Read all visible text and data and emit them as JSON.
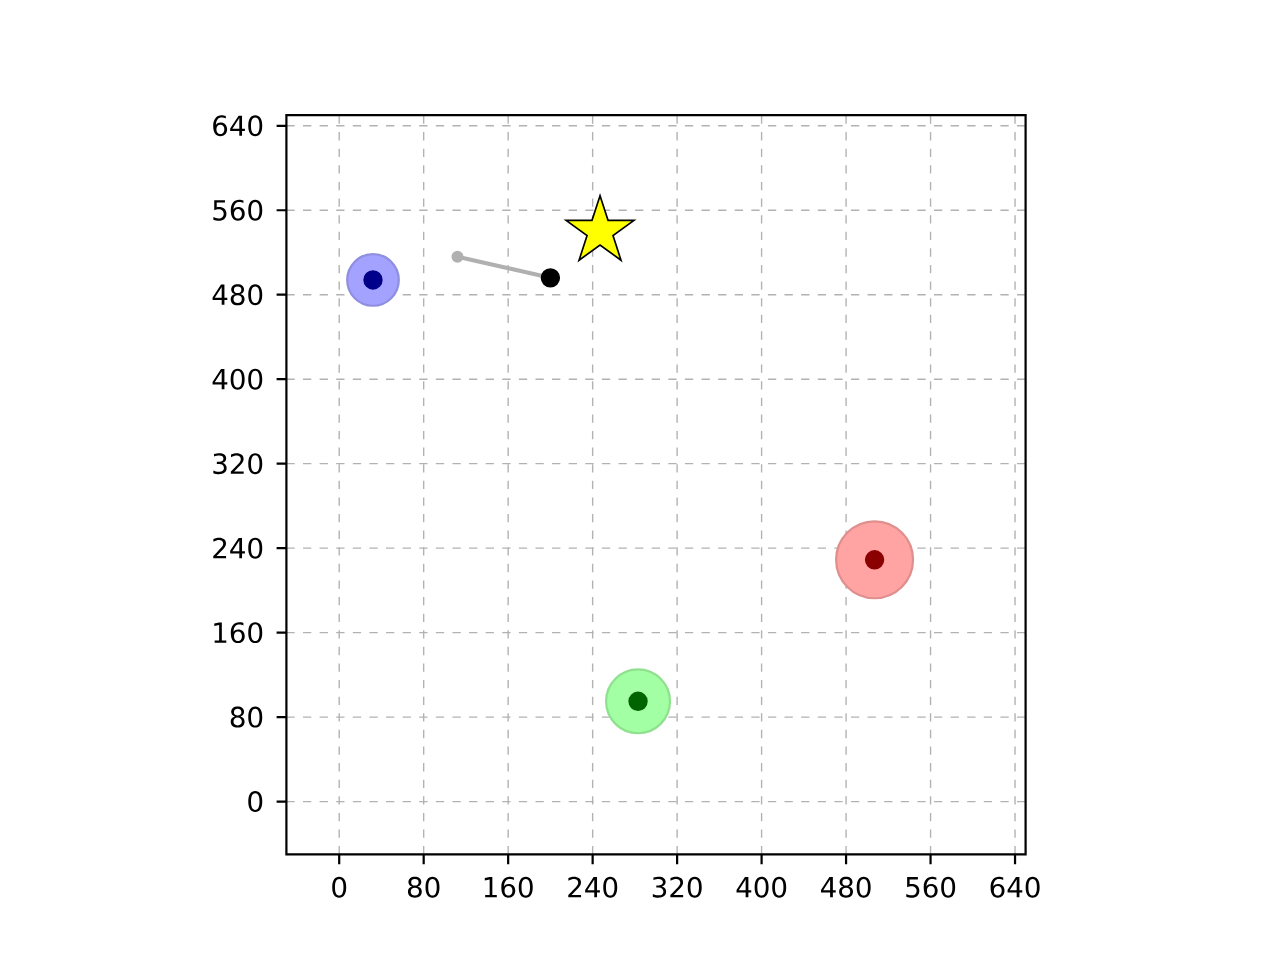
{
  "chart_data": {
    "type": "scatter",
    "xlim": [
      -50,
      650
    ],
    "ylim": [
      -50,
      650
    ],
    "xticks": [
      0,
      80,
      160,
      240,
      320,
      400,
      480,
      560,
      640
    ],
    "yticks": [
      0,
      80,
      160,
      240,
      320,
      400,
      480,
      560,
      640
    ],
    "grid": true,
    "series": [
      {
        "type": "bubble",
        "x": [
          32,
          507,
          283
        ],
        "values": [
          494,
          229,
          95
        ],
        "sizes": [
          0.45,
          1,
          0.69
        ],
        "colors": [
          "#a3a3ff",
          "#ffa3a3",
          "#a3ffa3"
        ]
      },
      {
        "x": [
          32,
          507,
          283
        ],
        "values": [
          494,
          229,
          95
        ],
        "colors": [
          "#00008b",
          "#8b0000",
          "#006400"
        ],
        "marker": "circle"
      },
      {
        "type": "line",
        "x": [
          112,
          200
        ],
        "values": [
          516,
          496
        ],
        "color": "#b0b0b0",
        "marker": "circle"
      },
      {
        "x": [
          200
        ],
        "values": [
          496
        ],
        "color": "#000000",
        "marker": "circle"
      },
      {
        "x": [
          247
        ],
        "values": [
          540
        ],
        "color": "#ffff00",
        "marker": "star"
      }
    ]
  }
}
